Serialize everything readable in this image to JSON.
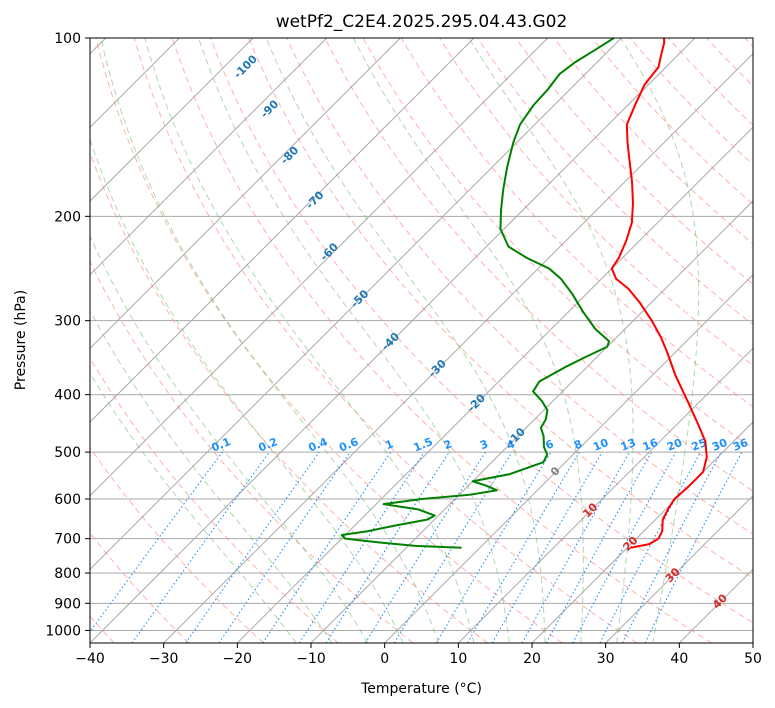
{
  "chart_data": {
    "type": "skew-t",
    "title": "wetPf2_C2E4.2025.295.04.43.G02",
    "xlabel": "Temperature (°C)",
    "ylabel": "Pressure (hPa)",
    "xlim": [
      -40,
      50
    ],
    "ylim": [
      1050,
      100
    ],
    "x_ticks": [
      -40,
      -30,
      -20,
      -10,
      0,
      10,
      20,
      30,
      40,
      50
    ],
    "x_tick_labels": [
      "−40",
      "−30",
      "−20",
      "−10",
      "0",
      "10",
      "20",
      "30",
      "40",
      "50"
    ],
    "y_ticks": [
      1000,
      900,
      800,
      700,
      600,
      500,
      400,
      300,
      200,
      100
    ],
    "y_tick_labels": [
      "1000",
      "900",
      "800",
      "700",
      "600",
      "500",
      "400",
      "300",
      "200",
      "100"
    ],
    "colors": {
      "temperature": "#ff0000",
      "dewpoint": "#008000",
      "isotherm": "#a9a9a9",
      "dry_adiabat": "#fa8072",
      "moist_adiabat": "#6ab96a",
      "mixing_ratio": "#1e90ff",
      "height_label_blue": "#1f77b4",
      "height_label_red": "#d62728",
      "height_label_gray": "#808080"
    },
    "series": [
      {
        "name": "Temperature",
        "points": [
          {
            "p": 725,
            "t": 20.5
          },
          {
            "p": 715,
            "t": 22.5
          },
          {
            "p": 700,
            "t": 23.0
          },
          {
            "p": 680,
            "t": 22.5
          },
          {
            "p": 650,
            "t": 21.0
          },
          {
            "p": 620,
            "t": 20.2
          },
          {
            "p": 600,
            "t": 19.8
          },
          {
            "p": 570,
            "t": 20.0
          },
          {
            "p": 540,
            "t": 20.0
          },
          {
            "p": 510,
            "t": 18.5
          },
          {
            "p": 480,
            "t": 16.2
          },
          {
            "p": 450,
            "t": 13.0
          },
          {
            "p": 420,
            "t": 9.5
          },
          {
            "p": 400,
            "t": 7.0
          },
          {
            "p": 370,
            "t": 3.0
          },
          {
            "p": 340,
            "t": -1.0
          },
          {
            "p": 320,
            "t": -4.0
          },
          {
            "p": 300,
            "t": -7.5
          },
          {
            "p": 280,
            "t": -11.5
          },
          {
            "p": 265,
            "t": -15.0
          },
          {
            "p": 255,
            "t": -18.0
          },
          {
            "p": 245,
            "t": -20.0
          },
          {
            "p": 235,
            "t": -20.5
          },
          {
            "p": 220,
            "t": -21.8
          },
          {
            "p": 205,
            "t": -23.5
          },
          {
            "p": 190,
            "t": -26.0
          },
          {
            "p": 175,
            "t": -29.0
          },
          {
            "p": 160,
            "t": -32.5
          },
          {
            "p": 150,
            "t": -35.0
          },
          {
            "p": 140,
            "t": -37.5
          },
          {
            "p": 130,
            "t": -39.0
          },
          {
            "p": 120,
            "t": -40.5
          },
          {
            "p": 112,
            "t": -41.0
          },
          {
            "p": 106,
            "t": -42.5
          },
          {
            "p": 102,
            "t": -43.5
          },
          {
            "p": 100,
            "t": -44.2
          }
        ]
      },
      {
        "name": "Dewpoint",
        "points": [
          {
            "p": 725,
            "t": -2.5
          },
          {
            "p": 720,
            "t": -9.0
          },
          {
            "p": 710,
            "t": -14.5
          },
          {
            "p": 700,
            "t": -19.5
          },
          {
            "p": 690,
            "t": -20.5
          },
          {
            "p": 680,
            "t": -17.5
          },
          {
            "p": 665,
            "t": -14.5
          },
          {
            "p": 650,
            "t": -11.0
          },
          {
            "p": 640,
            "t": -10.5
          },
          {
            "p": 625,
            "t": -13.5
          },
          {
            "p": 612,
            "t": -19.0
          },
          {
            "p": 600,
            "t": -14.5
          },
          {
            "p": 590,
            "t": -8.5
          },
          {
            "p": 580,
            "t": -5.5
          },
          {
            "p": 570,
            "t": -7.5
          },
          {
            "p": 560,
            "t": -10.0
          },
          {
            "p": 545,
            "t": -6.0
          },
          {
            "p": 520,
            "t": -3.0
          },
          {
            "p": 505,
            "t": -3.5
          },
          {
            "p": 490,
            "t": -5.0
          },
          {
            "p": 470,
            "t": -6.5
          },
          {
            "p": 455,
            "t": -8.0
          },
          {
            "p": 440,
            "t": -8.5
          },
          {
            "p": 425,
            "t": -9.5
          },
          {
            "p": 410,
            "t": -11.5
          },
          {
            "p": 395,
            "t": -14.0
          },
          {
            "p": 380,
            "t": -14.5
          },
          {
            "p": 360,
            "t": -13.0
          },
          {
            "p": 345,
            "t": -11.5
          },
          {
            "p": 332,
            "t": -10.0
          },
          {
            "p": 325,
            "t": -10.5
          },
          {
            "p": 310,
            "t": -14.0
          },
          {
            "p": 290,
            "t": -18.0
          },
          {
            "p": 270,
            "t": -22.0
          },
          {
            "p": 255,
            "t": -25.5
          },
          {
            "p": 245,
            "t": -28.5
          },
          {
            "p": 235,
            "t": -33.0
          },
          {
            "p": 225,
            "t": -37.0
          },
          {
            "p": 210,
            "t": -40.5
          },
          {
            "p": 195,
            "t": -43.0
          },
          {
            "p": 180,
            "t": -45.5
          },
          {
            "p": 165,
            "t": -48.0
          },
          {
            "p": 150,
            "t": -50.5
          },
          {
            "p": 140,
            "t": -52.0
          },
          {
            "p": 130,
            "t": -52.8
          },
          {
            "p": 122,
            "t": -53.0
          },
          {
            "p": 115,
            "t": -53.5
          },
          {
            "p": 110,
            "t": -53.0
          },
          {
            "p": 105,
            "t": -52.0
          },
          {
            "p": 100,
            "t": -51.0
          }
        ]
      }
    ],
    "isotherms_c": [
      -140,
      -130,
      -120,
      -110,
      -100,
      -90,
      -80,
      -70,
      -60,
      -50,
      -40,
      -30,
      -20,
      -10,
      0,
      10,
      20,
      30,
      40,
      50
    ],
    "dry_adiabats_c": [
      -50,
      -40,
      -30,
      -20,
      -10,
      0,
      10,
      20,
      30,
      40,
      50,
      60,
      70,
      80,
      90,
      100,
      110,
      120,
      130,
      140,
      150,
      160,
      170,
      180,
      190,
      200
    ],
    "moist_adiabats_c": [
      -15,
      -10,
      -5,
      0,
      5,
      10,
      15,
      20,
      25,
      30,
      35
    ],
    "mixing_ratio_lines": [
      {
        "label": "0.1",
        "w": 0.1
      },
      {
        "label": "0.2",
        "w": 0.2
      },
      {
        "label": "0.4",
        "w": 0.4
      },
      {
        "label": "0.6",
        "w": 0.6
      },
      {
        "label": "1",
        "w": 1
      },
      {
        "label": "1.5",
        "w": 1.5
      },
      {
        "label": "2",
        "w": 2
      },
      {
        "label": "3",
        "w": 3
      },
      {
        "label": "4",
        "w": 4
      },
      {
        "label": "6",
        "w": 6
      },
      {
        "label": "8",
        "w": 8
      },
      {
        "label": "10",
        "w": 10
      },
      {
        "label": "13",
        "w": 13
      },
      {
        "label": "16",
        "w": 16
      },
      {
        "label": "20",
        "w": 20
      },
      {
        "label": "25",
        "w": 25
      },
      {
        "label": "30",
        "w": 30
      },
      {
        "label": "36",
        "w": 36
      }
    ],
    "mixing_ratio_label_p": 500,
    "height_labels": [
      {
        "text": "-100",
        "p": 112,
        "t": -97,
        "kind": "blue"
      },
      {
        "text": "-90",
        "p": 132,
        "t": -88,
        "kind": "blue"
      },
      {
        "text": "-80",
        "p": 158,
        "t": -79,
        "kind": "blue"
      },
      {
        "text": "-70",
        "p": 188,
        "t": -69.5,
        "kind": "blue"
      },
      {
        "text": "-60",
        "p": 230,
        "t": -60.5,
        "kind": "blue"
      },
      {
        "text": "-50",
        "p": 276,
        "t": -50,
        "kind": "blue"
      },
      {
        "text": "-40",
        "p": 326,
        "t": -40,
        "kind": "blue"
      },
      {
        "text": "-30",
        "p": 362,
        "t": -30,
        "kind": "blue"
      },
      {
        "text": "-20",
        "p": 414,
        "t": -20,
        "kind": "blue"
      },
      {
        "text": "-10",
        "p": 472,
        "t": -10,
        "kind": "blue"
      },
      {
        "text": "0",
        "p": 540,
        "t": 0,
        "kind": "gray"
      },
      {
        "text": "10",
        "p": 628,
        "t": 10,
        "kind": "red"
      },
      {
        "text": "20",
        "p": 715,
        "t": 20,
        "kind": "red"
      },
      {
        "text": "30",
        "p": 808,
        "t": 30,
        "kind": "red"
      },
      {
        "text": "40",
        "p": 895,
        "t": 40,
        "kind": "red"
      }
    ],
    "grid": true
  }
}
